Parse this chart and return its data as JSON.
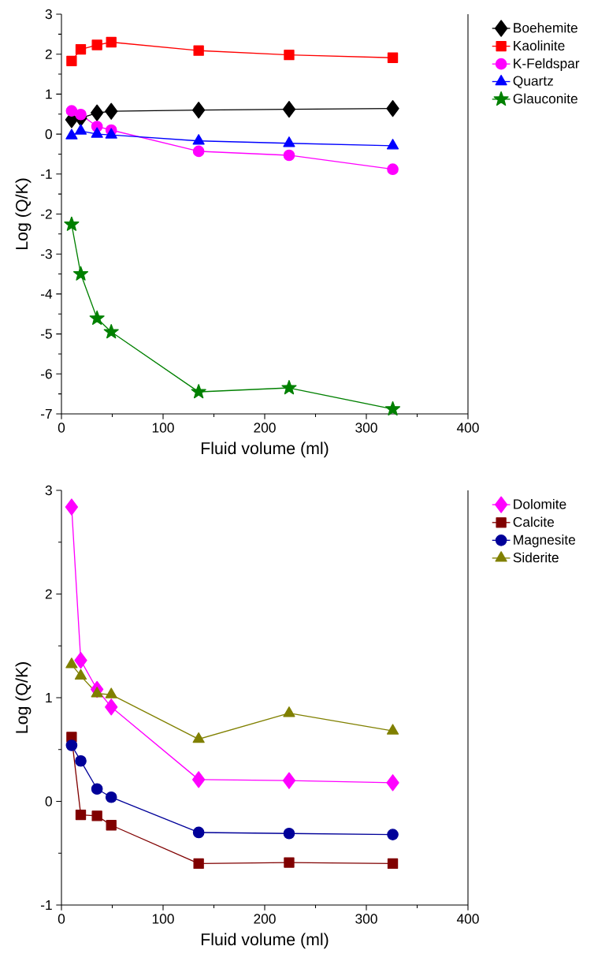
{
  "chart_data": [
    {
      "type": "line",
      "xlabel": "Fluid volume (ml)",
      "ylabel": "Log (Q/K)",
      "xlim": [
        0,
        400
      ],
      "ylim": [
        -7,
        3
      ],
      "xticks": [
        0,
        100,
        200,
        300,
        400
      ],
      "yticks": [
        -7,
        -6,
        -5,
        -4,
        -3,
        -2,
        -1,
        0,
        1,
        2,
        3
      ],
      "legend": "top right",
      "grid": false,
      "x": [
        10,
        19,
        35,
        49,
        135,
        224,
        326
      ],
      "series": [
        {
          "name": "Boehemite",
          "color": "#000000",
          "marker": "diamond",
          "values": [
            0.36,
            0.4,
            0.53,
            0.57,
            0.6,
            0.62,
            0.64
          ]
        },
        {
          "name": "Kaolinite",
          "color": "#ff0000",
          "marker": "square",
          "values": [
            1.83,
            2.12,
            2.23,
            2.3,
            2.09,
            1.98,
            1.91
          ]
        },
        {
          "name": "K-Feldspar",
          "color": "#ff00ff",
          "marker": "circle",
          "values": [
            0.58,
            0.49,
            0.19,
            0.1,
            -0.43,
            -0.53,
            -0.88
          ]
        },
        {
          "name": "Quartz",
          "color": "#0000ff",
          "marker": "triangle",
          "values": [
            -0.04,
            0.08,
            0,
            -0.02,
            -0.17,
            -0.23,
            -0.29
          ]
        },
        {
          "name": "Glauconite",
          "color": "#008000",
          "marker": "star",
          "values": [
            -2.26,
            -3.5,
            -4.61,
            -4.95,
            -6.45,
            -6.35,
            -6.88
          ]
        }
      ]
    },
    {
      "type": "line",
      "xlabel": "Fluid volume (ml)",
      "ylabel": "Log (Q/K)",
      "xlim": [
        0,
        400
      ],
      "ylim": [
        -1,
        3
      ],
      "xticks": [
        0,
        100,
        200,
        300,
        400
      ],
      "yticks": [
        -1,
        0,
        1,
        2,
        3
      ],
      "legend": "top right",
      "grid": false,
      "x": [
        10,
        19,
        35,
        49,
        135,
        224,
        326
      ],
      "series": [
        {
          "name": "Dolomite",
          "color": "#ff00ff",
          "marker": "diamond",
          "values": [
            2.84,
            1.36,
            1.08,
            0.91,
            0.21,
            0.2,
            0.18
          ]
        },
        {
          "name": "Calcite",
          "color": "#800000",
          "marker": "square",
          "values": [
            0.62,
            -0.13,
            -0.14,
            -0.23,
            -0.6,
            -0.59,
            -0.6
          ]
        },
        {
          "name": "Magnesite",
          "color": "#000099",
          "marker": "circle",
          "values": [
            0.54,
            0.39,
            0.12,
            0.04,
            -0.3,
            -0.31,
            -0.32
          ]
        },
        {
          "name": "Siderite",
          "color": "#808000",
          "marker": "triangle",
          "values": [
            1.32,
            1.21,
            1.04,
            1.03,
            0.6,
            0.85,
            0.68
          ]
        }
      ]
    }
  ]
}
